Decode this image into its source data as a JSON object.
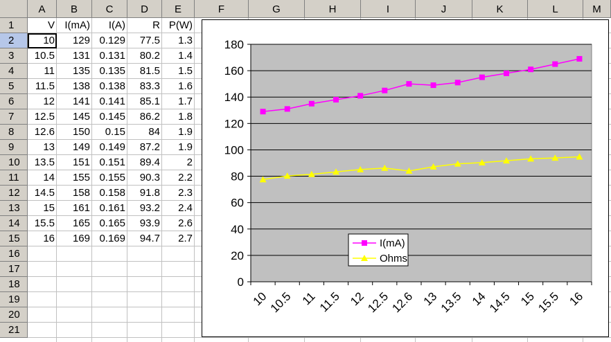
{
  "spreadsheet": {
    "column_headers": [
      "A",
      "B",
      "C",
      "D",
      "E",
      "F",
      "G",
      "H",
      "I",
      "J",
      "K",
      "L",
      "M"
    ],
    "row_headers": [
      "1",
      "2",
      "3",
      "4",
      "5",
      "6",
      "7",
      "8",
      "9",
      "10",
      "11",
      "12",
      "13",
      "14",
      "15",
      "16",
      "17",
      "18",
      "19",
      "20",
      "21"
    ],
    "table_headers": [
      "V",
      "I(mA)",
      "I(A)",
      "R",
      "P(W)"
    ],
    "rows": [
      [
        "10",
        "129",
        "0.129",
        "77.5",
        "1.3"
      ],
      [
        "10.5",
        "131",
        "0.131",
        "80.2",
        "1.4"
      ],
      [
        "11",
        "135",
        "0.135",
        "81.5",
        "1.5"
      ],
      [
        "11.5",
        "138",
        "0.138",
        "83.3",
        "1.6"
      ],
      [
        "12",
        "141",
        "0.141",
        "85.1",
        "1.7"
      ],
      [
        "12.5",
        "145",
        "0.145",
        "86.2",
        "1.8"
      ],
      [
        "12.6",
        "150",
        "0.15",
        "84",
        "1.9"
      ],
      [
        "13",
        "149",
        "0.149",
        "87.2",
        "1.9"
      ],
      [
        "13.5",
        "151",
        "0.151",
        "89.4",
        "2"
      ],
      [
        "14",
        "155",
        "0.155",
        "90.3",
        "2.2"
      ],
      [
        "14.5",
        "158",
        "0.158",
        "91.8",
        "2.3"
      ],
      [
        "15",
        "161",
        "0.161",
        "93.2",
        "2.4"
      ],
      [
        "15.5",
        "165",
        "0.165",
        "93.9",
        "2.6"
      ],
      [
        "16",
        "169",
        "0.169",
        "94.7",
        "2.7"
      ]
    ]
  },
  "chart_data": {
    "type": "line",
    "title": "",
    "xlabel": "",
    "ylabel": "",
    "categories": [
      "10",
      "10.5",
      "11",
      "11.5",
      "12",
      "12.5",
      "12.6",
      "13",
      "13.5",
      "14",
      "14.5",
      "15",
      "15.5",
      "16"
    ],
    "ylim": [
      0,
      180
    ],
    "yticks": [
      "0",
      "20",
      "40",
      "60",
      "80",
      "100",
      "120",
      "140",
      "160",
      "180"
    ],
    "grid": true,
    "legend_position": "bottom-left",
    "plot_background": "#c0c0c0",
    "series": [
      {
        "name": "I(mA)",
        "color": "#ff00ff",
        "marker": "square",
        "values": [
          129,
          131,
          135,
          138,
          141,
          145,
          150,
          149,
          151,
          155,
          158,
          161,
          165,
          169
        ]
      },
      {
        "name": "Ohms",
        "color": "#ffff00",
        "marker": "triangle",
        "values": [
          77.5,
          80.2,
          81.5,
          83.3,
          85.1,
          86.2,
          84,
          87.2,
          89.4,
          90.3,
          91.8,
          93.2,
          93.9,
          94.7
        ]
      }
    ]
  }
}
